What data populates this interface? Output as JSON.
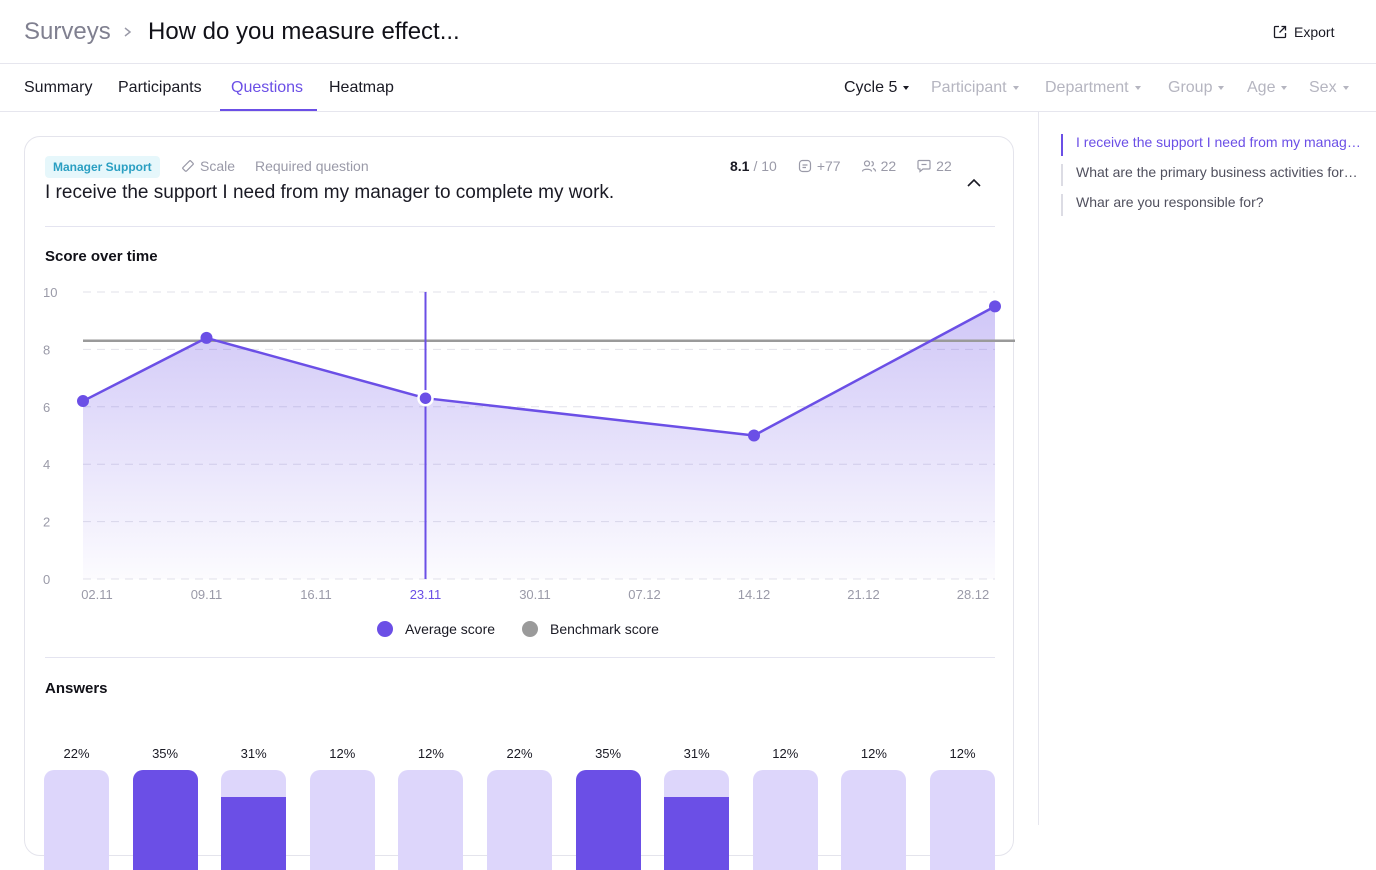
{
  "header": {
    "breadcrumb_root": "Surveys",
    "title": "How do you measure effect...",
    "export_label": "Export"
  },
  "tabs": [
    {
      "label": "Summary",
      "active": false
    },
    {
      "label": "Participants",
      "active": false
    },
    {
      "label": "Questions",
      "active": true
    },
    {
      "label": "Heatmap",
      "active": false
    }
  ],
  "filters": [
    {
      "label": "Cycle 5",
      "primary": true
    },
    {
      "label": "Participant",
      "primary": false
    },
    {
      "label": "Department",
      "primary": false
    },
    {
      "label": "Group",
      "primary": false
    },
    {
      "label": "Age",
      "primary": false
    },
    {
      "label": "Sex",
      "primary": false
    }
  ],
  "question": {
    "tag": "Manager Support",
    "type": "Scale",
    "required_label": "Required question",
    "score": "8.1",
    "score_max": "/ 10",
    "responses": "+77",
    "participants": "22",
    "comments": "22",
    "text": "I receive the support I need from my manager to complete my work."
  },
  "chart_section_title": "Score over time",
  "answers_section_title": "Answers",
  "colors": {
    "accent": "#6b4fe6",
    "accent_light": "#ddd6fb",
    "benchmark": "#9a9a9a",
    "tag_bg": "#e6f7fb",
    "tag_text": "#2a9fc2"
  },
  "chart_data": {
    "type": "line",
    "ylim": [
      0,
      10
    ],
    "y_ticks": [
      0,
      2,
      4,
      6,
      8,
      10
    ],
    "x_ticks": [
      "02.11",
      "09.11",
      "16.11",
      "23.11",
      "30.11",
      "07.12",
      "14.12",
      "21.12",
      "28.12"
    ],
    "highlighted_tick": "23.11",
    "grid": true,
    "series": [
      {
        "name": "Average score",
        "color": "#6b4fe6",
        "points": [
          {
            "x": "02.11",
            "y": 6.2
          },
          {
            "x": "09.11",
            "y": 8.4
          },
          {
            "x": "23.11",
            "y": 6.3
          },
          {
            "x": "14.12",
            "y": 5.0
          },
          {
            "x": "28.12",
            "y": 9.5
          }
        ]
      }
    ],
    "benchmark": {
      "name": "Benchmark score",
      "color": "#9a9a9a",
      "value": 8.3
    },
    "legend_position": "bottom-center"
  },
  "answers": [
    {
      "label": "22%",
      "fill": 0
    },
    {
      "label": "35%",
      "fill": 1
    },
    {
      "label": "31%",
      "fill": 0.73
    },
    {
      "label": "12%",
      "fill": 0
    },
    {
      "label": "12%",
      "fill": 0
    },
    {
      "label": "22%",
      "fill": 0
    },
    {
      "label": "35%",
      "fill": 1
    },
    {
      "label": "31%",
      "fill": 0.73
    },
    {
      "label": "12%",
      "fill": 0
    },
    {
      "label": "12%",
      "fill": 0
    },
    {
      "label": "12%",
      "fill": 0
    }
  ],
  "outline": [
    {
      "label": "I receive the support I need from my manager to complete my work.",
      "active": true
    },
    {
      "label": "What are the primary business activities for your team?",
      "active": false
    },
    {
      "label": "Whar are you responsible for?",
      "active": false
    }
  ]
}
